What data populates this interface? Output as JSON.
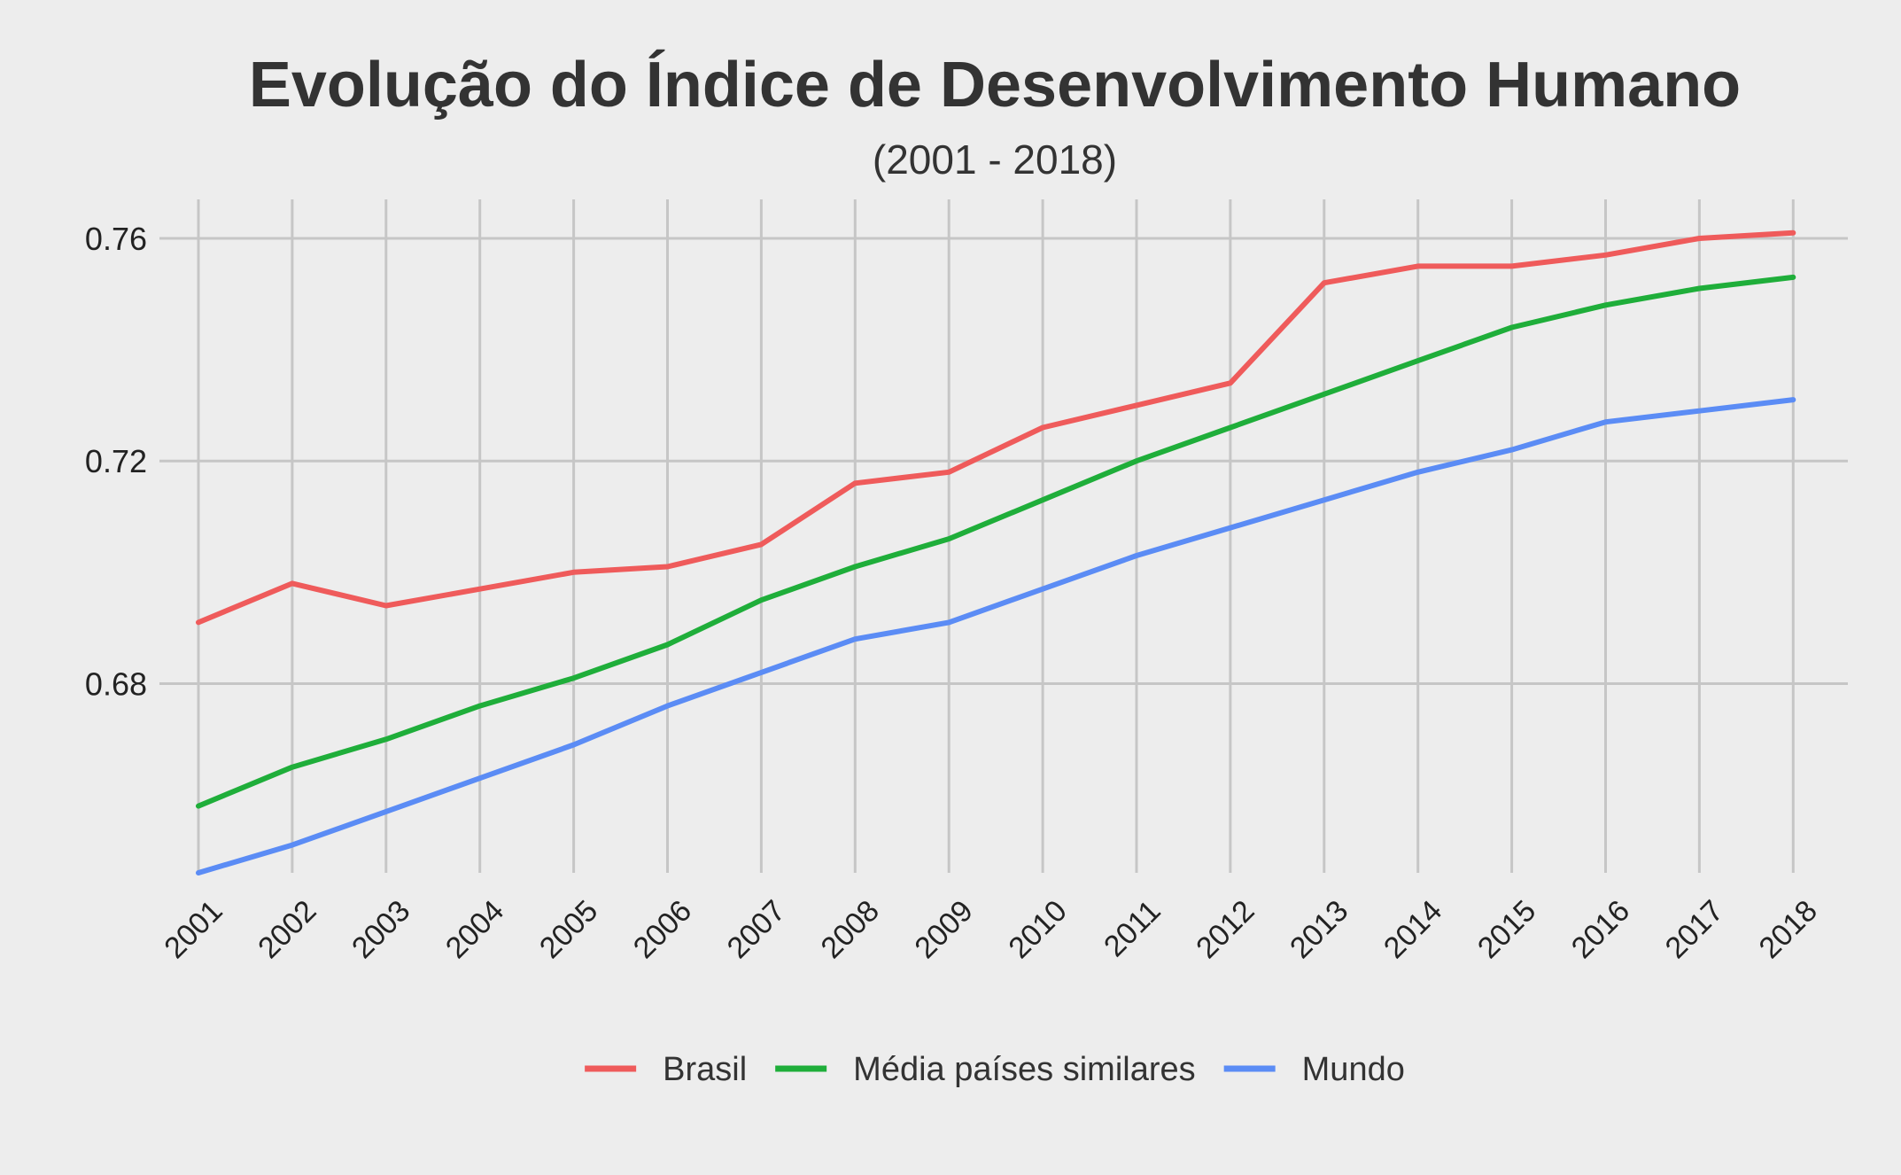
{
  "chart_data": {
    "type": "line",
    "title": "Evolução do Índice de Desenvolvimento Humano",
    "subtitle": "(2001 - 2018)",
    "xlabel": "",
    "ylabel": "",
    "x": [
      "2001",
      "2002",
      "2003",
      "2004",
      "2005",
      "2006",
      "2007",
      "2008",
      "2009",
      "2010",
      "2011",
      "2012",
      "2013",
      "2014",
      "2015",
      "2016",
      "2017",
      "2018"
    ],
    "ylim": [
      0.646,
      0.767
    ],
    "yticks": [
      0.68,
      0.72,
      0.76
    ],
    "ytick_labels": [
      "0.68",
      "0.72",
      "0.76"
    ],
    "grid": true,
    "legend_position": "bottom",
    "series": [
      {
        "name": "Brasil",
        "color": "#ef5b5b",
        "values": [
          0.691,
          0.698,
          0.694,
          0.697,
          0.7,
          0.701,
          0.705,
          0.716,
          0.718,
          0.726,
          0.73,
          0.734,
          0.752,
          0.755,
          0.755,
          0.757,
          0.76,
          0.761
        ]
      },
      {
        "name": "Média países similares",
        "color": "#1fae3a",
        "values": [
          0.658,
          0.665,
          0.67,
          0.676,
          0.681,
          0.687,
          0.695,
          0.701,
          0.706,
          0.713,
          0.72,
          0.726,
          0.732,
          0.738,
          0.744,
          0.748,
          0.751,
          0.753
        ]
      },
      {
        "name": "Mundo",
        "color": "#5b8cf5",
        "values": [
          0.646,
          0.651,
          0.657,
          0.663,
          0.669,
          0.676,
          0.682,
          0.688,
          0.691,
          0.697,
          0.703,
          0.708,
          0.713,
          0.718,
          0.722,
          0.727,
          0.729,
          0.731
        ]
      }
    ]
  }
}
